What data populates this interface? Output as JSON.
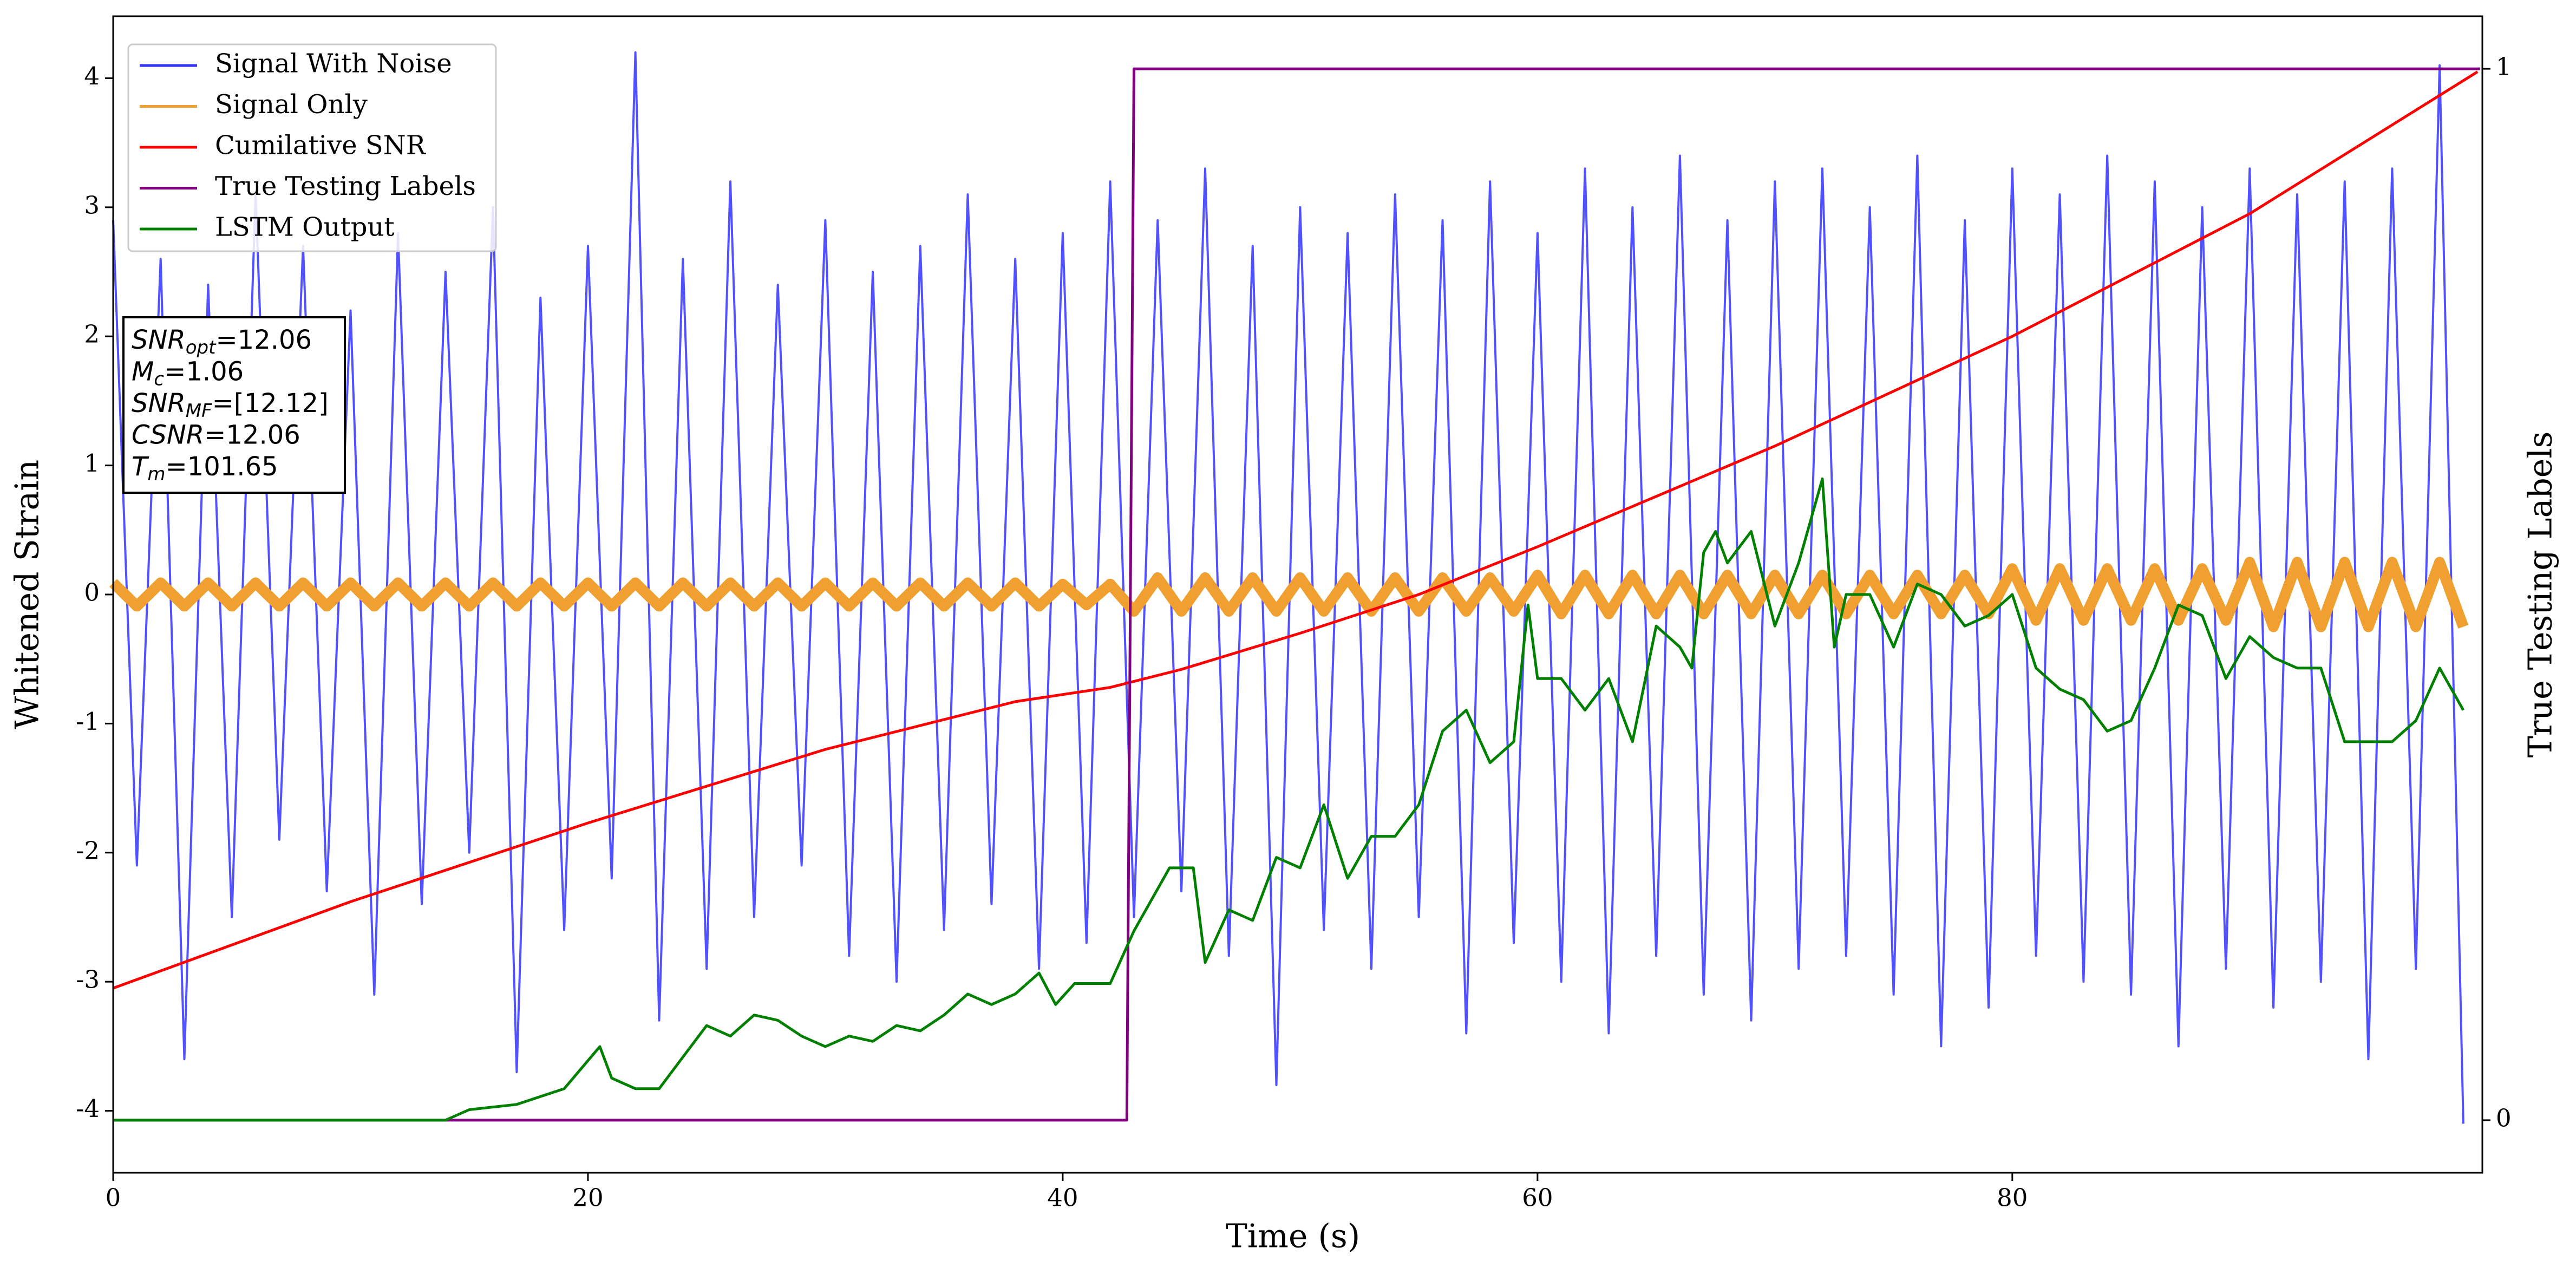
{
  "chart_data": {
    "type": "line",
    "xlabel": "Time (s)",
    "ylabel": "Whitened Strain",
    "y2label": "True Testing Labels",
    "xlim": [
      0,
      99.8
    ],
    "xticks": [
      0,
      20,
      40,
      60,
      80
    ],
    "ylim": [
      -4.48,
      4.48
    ],
    "yticks": [
      -4,
      -3,
      -2,
      -1,
      0,
      1,
      2,
      3,
      4
    ],
    "y2lim": [
      -0.05,
      1.05
    ],
    "y2ticks": [
      0,
      1
    ],
    "legend": "upper left",
    "x": [
      0,
      1,
      2,
      3,
      4,
      5,
      6,
      7,
      8,
      9,
      10,
      11,
      12,
      13,
      14,
      15,
      16,
      17,
      18,
      19,
      20,
      21,
      22,
      23,
      24,
      25,
      26,
      27,
      28,
      29,
      30,
      31,
      32,
      33,
      34,
      35,
      36,
      37,
      38,
      39,
      40,
      41,
      42,
      43,
      44,
      45,
      46,
      47,
      48,
      49,
      50,
      51,
      52,
      53,
      54,
      55,
      56,
      57,
      58,
      59,
      60,
      61,
      62,
      63,
      64,
      65,
      66,
      67,
      68,
      69,
      70,
      71,
      72,
      73,
      74,
      75,
      76,
      77,
      78,
      79,
      80,
      81,
      82,
      83,
      84,
      85,
      86,
      87,
      88,
      89,
      90,
      91,
      92,
      93,
      94,
      95,
      96,
      97,
      98,
      99
    ],
    "series": [
      {
        "name": "Signal With Noise",
        "color": "#3333ff",
        "values": [
          2.9,
          -2.1,
          2.6,
          -3.6,
          2.4,
          -2.5,
          3.1,
          -1.9,
          2.7,
          -2.3,
          2.2,
          -3.1,
          2.8,
          -2.4,
          2.5,
          -2.0,
          3.0,
          -3.7,
          2.3,
          -2.6,
          2.7,
          -2.2,
          4.2,
          -3.3,
          2.6,
          -2.9,
          3.2,
          -2.5,
          2.4,
          -2.1,
          2.9,
          -2.8,
          2.5,
          -3.0,
          2.7,
          -2.6,
          3.1,
          -2.4,
          2.6,
          -2.9,
          2.8,
          -2.7,
          3.2,
          -2.5,
          2.9,
          -2.3,
          3.3,
          -2.8,
          2.7,
          -3.8,
          3.0,
          -2.6,
          2.8,
          -2.9,
          3.1,
          -2.5,
          2.9,
          -3.4,
          3.2,
          -2.7,
          2.8,
          -3.0,
          3.3,
          -3.4,
          3.0,
          -2.8,
          3.4,
          -3.1,
          2.9,
          -3.3,
          3.2,
          -2.9,
          3.3,
          -2.8,
          3.0,
          -3.1,
          3.4,
          -3.5,
          2.9,
          -3.2,
          3.3,
          -2.8,
          3.1,
          -3.0,
          3.4,
          -3.1,
          3.2,
          -3.5,
          3.0,
          -2.9,
          3.3,
          -3.2,
          3.1,
          -3.0,
          3.2,
          -3.6,
          3.3,
          -2.9,
          4.1,
          -4.1
        ]
      },
      {
        "name": "Signal Only",
        "color": "#f0a030",
        "values": [
          0.09,
          -0.09,
          0.09,
          -0.09,
          0.09,
          -0.09,
          0.09,
          -0.09,
          0.09,
          -0.09,
          0.09,
          -0.09,
          0.09,
          -0.09,
          0.09,
          -0.09,
          0.09,
          -0.09,
          0.09,
          -0.09,
          0.09,
          -0.09,
          0.09,
          -0.09,
          0.09,
          -0.09,
          0.09,
          -0.09,
          0.09,
          -0.09,
          0.09,
          -0.09,
          0.09,
          -0.09,
          0.09,
          -0.09,
          0.09,
          -0.09,
          0.09,
          -0.09,
          0.08,
          -0.08,
          0.08,
          -0.13,
          0.13,
          -0.13,
          0.13,
          -0.13,
          0.13,
          -0.13,
          0.13,
          -0.13,
          0.13,
          -0.13,
          0.13,
          -0.13,
          0.13,
          -0.13,
          0.13,
          -0.13,
          0.15,
          -0.15,
          0.15,
          -0.15,
          0.15,
          -0.15,
          0.15,
          -0.15,
          0.15,
          -0.15,
          0.15,
          -0.15,
          0.15,
          -0.15,
          0.15,
          -0.15,
          0.15,
          -0.15,
          0.15,
          -0.15,
          0.2,
          -0.2,
          0.2,
          -0.2,
          0.2,
          -0.2,
          0.2,
          -0.2,
          0.2,
          -0.2,
          0.25,
          -0.25,
          0.25,
          -0.25,
          0.25,
          -0.25,
          0.25,
          -0.25,
          0.25,
          -0.25
        ]
      },
      {
        "name": "Cumilative SNR",
        "color": "#ff0000",
        "x": [
          0,
          10,
          20,
          30,
          38,
          42,
          45,
          50,
          55,
          60,
          70,
          80,
          90,
          99.6
        ],
        "values": [
          -3.05,
          -2.38,
          -1.77,
          -1.2,
          -0.83,
          -0.72,
          -0.58,
          -0.3,
          0.0,
          0.37,
          1.15,
          2.0,
          2.95,
          4.05
        ]
      },
      {
        "name": "True Testing Labels",
        "color": "#800080",
        "axis": "y2",
        "x": [
          0,
          42.7,
          43.0,
          99.7
        ],
        "values": [
          0,
          0,
          1,
          1
        ]
      },
      {
        "name": "LSTM Output",
        "color": "#008000",
        "axis": "y2",
        "x": [
          0,
          14,
          15,
          17,
          19,
          20.5,
          21,
          22,
          23,
          24,
          25,
          26,
          27,
          28,
          29,
          30,
          31,
          32,
          33,
          34,
          35,
          36,
          37,
          38,
          39,
          39.7,
          40.5,
          42,
          43,
          43.5,
          44.5,
          45.5,
          46,
          47,
          48,
          49,
          50,
          51,
          52,
          53,
          54,
          55,
          56,
          57,
          58,
          59,
          59.6,
          60,
          61,
          62,
          63,
          64,
          65,
          66,
          66.5,
          67,
          67.5,
          68,
          69,
          70,
          71,
          72,
          72.5,
          73,
          74,
          75,
          76,
          77,
          78,
          79,
          80,
          81,
          82,
          83,
          84,
          85,
          86,
          87,
          88,
          89,
          90,
          91,
          92,
          93,
          94,
          95,
          96,
          97,
          98,
          99
        ],
        "values": [
          0,
          0,
          0.01,
          0.015,
          0.03,
          0.07,
          0.04,
          0.03,
          0.03,
          0.06,
          0.09,
          0.08,
          0.1,
          0.095,
          0.08,
          0.07,
          0.08,
          0.075,
          0.09,
          0.085,
          0.1,
          0.12,
          0.11,
          0.12,
          0.14,
          0.11,
          0.13,
          0.13,
          0.18,
          0.2,
          0.24,
          0.24,
          0.15,
          0.2,
          0.19,
          0.25,
          0.24,
          0.3,
          0.23,
          0.27,
          0.27,
          0.3,
          0.37,
          0.39,
          0.34,
          0.36,
          0.49,
          0.42,
          0.42,
          0.39,
          0.42,
          0.36,
          0.47,
          0.45,
          0.43,
          0.54,
          0.56,
          0.53,
          0.56,
          0.47,
          0.53,
          0.61,
          0.45,
          0.5,
          0.5,
          0.45,
          0.51,
          0.5,
          0.47,
          0.48,
          0.5,
          0.43,
          0.41,
          0.4,
          0.37,
          0.38,
          0.43,
          0.49,
          0.48,
          0.42,
          0.46,
          0.44,
          0.43,
          0.43,
          0.36,
          0.36,
          0.36,
          0.38,
          0.43,
          0.39
        ]
      }
    ],
    "annotation": [
      {
        "main": "SNR",
        "sub": "opt",
        "rest": "=12.06"
      },
      {
        "main": "M",
        "sub": "c",
        "rest": "=1.06"
      },
      {
        "main": "SNR",
        "sub": "MF",
        "rest": "=[12.12]"
      },
      {
        "main": "CSNR",
        "sub": null,
        "rest": "=12.06"
      },
      {
        "main": "T",
        "sub": "m",
        "rest": "=101.65"
      }
    ]
  }
}
